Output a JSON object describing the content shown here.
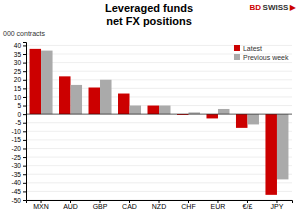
{
  "chart_data": {
    "type": "bar",
    "title": "Leveraged funds",
    "subtitle": "net FX positions",
    "y_label": "000 contracts",
    "categories": [
      "MXN",
      "AUD",
      "GBP",
      "CAD",
      "NZD",
      "CHF",
      "EUR",
      "€/£",
      "JPY"
    ],
    "series": [
      {
        "name": "Latest",
        "color": "#cc0000",
        "values": [
          38,
          22,
          15.5,
          12,
          5,
          -0.5,
          -2.5,
          -8,
          -47
        ]
      },
      {
        "name": "Previous week",
        "color": "#aaaaaa",
        "values": [
          37,
          17,
          20,
          5,
          5,
          1,
          3,
          -6,
          -38
        ]
      }
    ],
    "ylim": [
      -50,
      42
    ],
    "yticks": [
      -50,
      -45,
      -40,
      -35,
      -30,
      -25,
      -20,
      -15,
      -10,
      -5,
      0,
      5,
      10,
      15,
      20,
      25,
      30,
      35,
      40
    ],
    "grid": true,
    "legend": "upper right",
    "annotations": [
      {
        "text": "BD",
        "color": "#cc0000"
      },
      {
        "text": "SWISS",
        "color": "#333333"
      },
      {
        "text": "▶",
        "color": "#cc0000"
      }
    ]
  }
}
